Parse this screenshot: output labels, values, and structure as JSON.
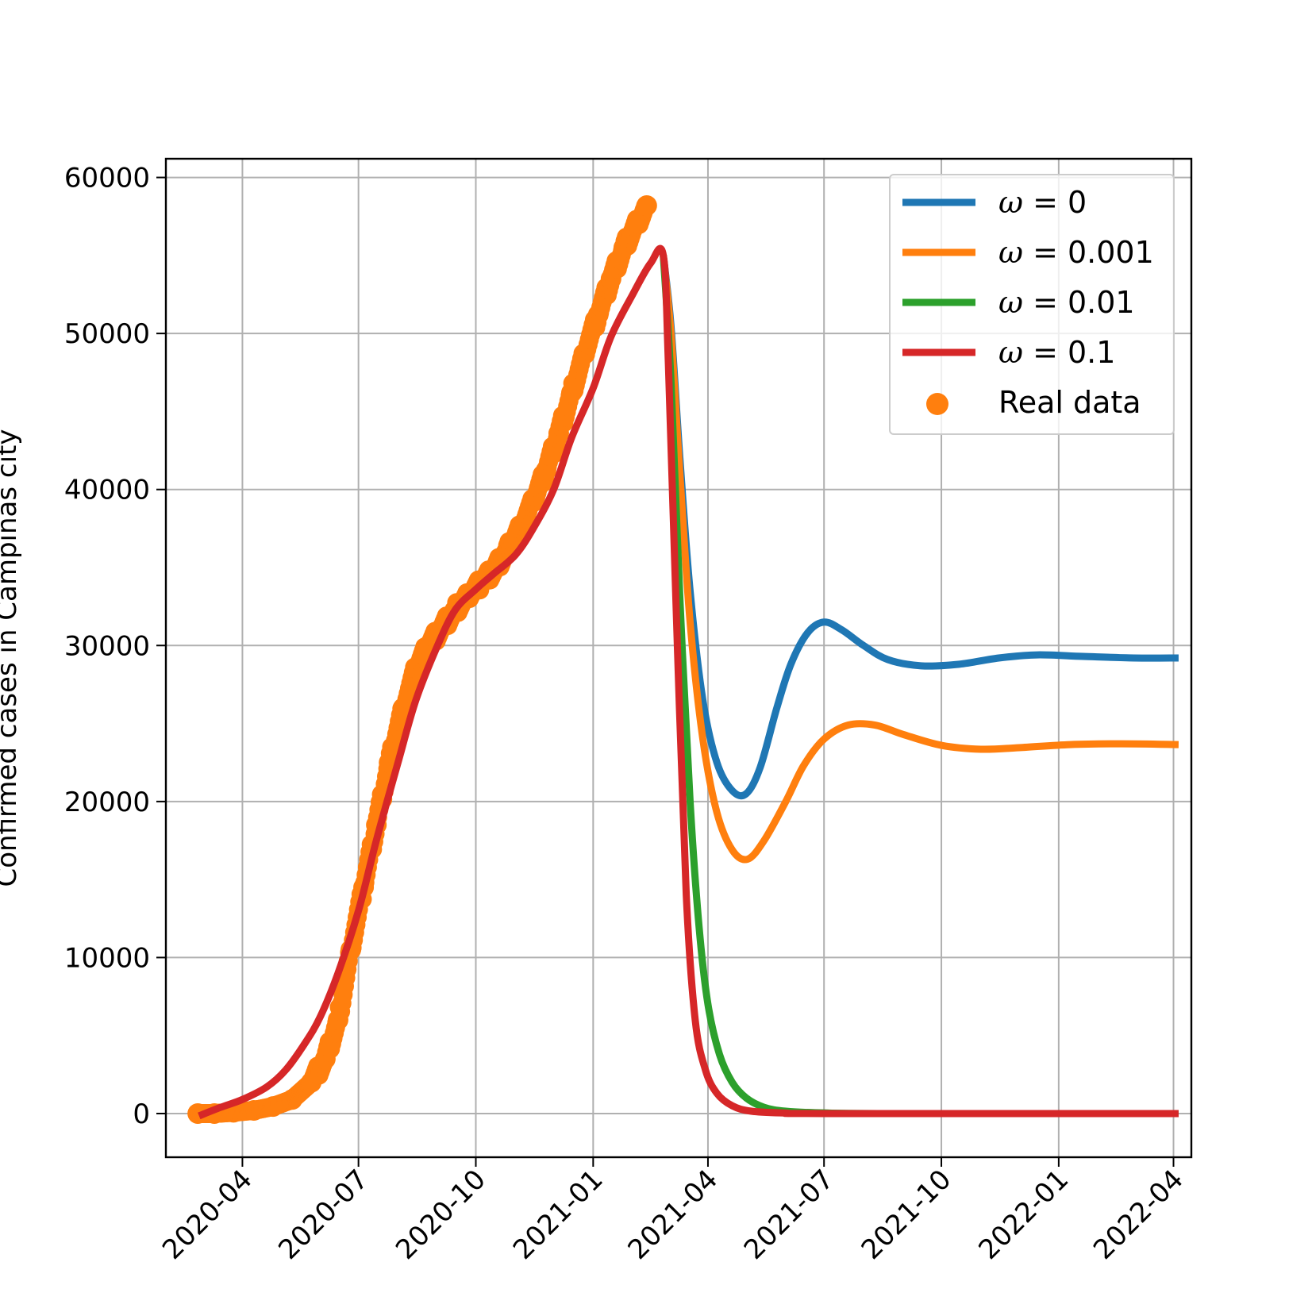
{
  "chart_data": {
    "type": "line",
    "title": "",
    "xlabel": "",
    "ylabel": "Confirmed cases in Campinas city",
    "x_axis_type": "date",
    "xlim": [
      "2020-02-01",
      "2022-04-15"
    ],
    "ylim": [
      -2800,
      61200
    ],
    "xticks": [
      "2020-04",
      "2020-07",
      "2020-10",
      "2021-01",
      "2021-04",
      "2021-07",
      "2021-10",
      "2022-01",
      "2022-04"
    ],
    "xtick_dates": [
      "2020-04-01",
      "2020-07-01",
      "2020-10-01",
      "2021-01-01",
      "2021-04-01",
      "2021-07-01",
      "2021-10-01",
      "2022-01-01",
      "2022-04-01"
    ],
    "yticks": [
      "0",
      "10000",
      "20000",
      "30000",
      "40000",
      "50000",
      "60000"
    ],
    "ytick_values": [
      0,
      10000,
      20000,
      30000,
      40000,
      50000,
      60000
    ],
    "grid": true,
    "legend_position": "top-right",
    "series": [
      {
        "name": "ω = 0",
        "legend_prefix": "ω",
        "legend_value": "0",
        "kind": "line",
        "color": "#1f77b4",
        "points": [
          [
            "2021-02-25",
            55000
          ],
          [
            "2021-03-03",
            50500
          ],
          [
            "2021-03-10",
            42000
          ],
          [
            "2021-03-18",
            33500
          ],
          [
            "2021-03-28",
            26500
          ],
          [
            "2021-04-08",
            22500
          ],
          [
            "2021-04-20",
            20700
          ],
          [
            "2021-05-01",
            20500
          ],
          [
            "2021-05-12",
            22200
          ],
          [
            "2021-05-25",
            26000
          ],
          [
            "2021-06-05",
            28800
          ],
          [
            "2021-06-18",
            30800
          ],
          [
            "2021-07-01",
            31500
          ],
          [
            "2021-07-15",
            31000
          ],
          [
            "2021-08-01",
            30000
          ],
          [
            "2021-08-20",
            29100
          ],
          [
            "2021-09-15",
            28700
          ],
          [
            "2021-10-15",
            28800
          ],
          [
            "2021-11-15",
            29200
          ],
          [
            "2021-12-15",
            29400
          ],
          [
            "2022-01-20",
            29300
          ],
          [
            "2022-03-01",
            29200
          ],
          [
            "2022-04-05",
            29200
          ]
        ]
      },
      {
        "name": "ω = 0.001",
        "legend_prefix": "ω",
        "legend_value": "0.001",
        "kind": "line",
        "color": "#ff7f0e",
        "points": [
          [
            "2021-02-25",
            55000
          ],
          [
            "2021-03-03",
            50000
          ],
          [
            "2021-03-10",
            41000
          ],
          [
            "2021-03-18",
            31500
          ],
          [
            "2021-03-28",
            24000
          ],
          [
            "2021-04-08",
            19300
          ],
          [
            "2021-04-20",
            16900
          ],
          [
            "2021-05-02",
            16300
          ],
          [
            "2021-05-15",
            17500
          ],
          [
            "2021-06-01",
            20000
          ],
          [
            "2021-06-15",
            22300
          ],
          [
            "2021-07-01",
            24000
          ],
          [
            "2021-07-20",
            24900
          ],
          [
            "2021-08-10",
            24900
          ],
          [
            "2021-09-01",
            24300
          ],
          [
            "2021-10-01",
            23600
          ],
          [
            "2021-11-01",
            23350
          ],
          [
            "2021-12-01",
            23450
          ],
          [
            "2022-01-10",
            23650
          ],
          [
            "2022-02-20",
            23700
          ],
          [
            "2022-04-05",
            23650
          ]
        ]
      },
      {
        "name": "ω = 0.01",
        "legend_prefix": "ω",
        "legend_value": "0.01",
        "kind": "line",
        "color": "#2ca02c",
        "points": [
          [
            "2021-02-25",
            55000
          ],
          [
            "2021-03-03",
            47000
          ],
          [
            "2021-03-10",
            33000
          ],
          [
            "2021-03-18",
            20000
          ],
          [
            "2021-03-25",
            12000
          ],
          [
            "2021-04-01",
            7000
          ],
          [
            "2021-04-10",
            3800
          ],
          [
            "2021-04-20",
            2000
          ],
          [
            "2021-05-01",
            1000
          ],
          [
            "2021-05-15",
            400
          ],
          [
            "2021-06-01",
            150
          ],
          [
            "2021-07-01",
            40
          ],
          [
            "2021-09-01",
            0
          ],
          [
            "2022-04-05",
            0
          ]
        ]
      },
      {
        "name": "ω = 0.1",
        "legend_prefix": "ω",
        "legend_value": "0.1",
        "kind": "line",
        "color": "#d62728",
        "points": [
          [
            "2020-02-27",
            -150
          ],
          [
            "2020-03-15",
            400
          ],
          [
            "2020-04-01",
            900
          ],
          [
            "2020-04-20",
            1700
          ],
          [
            "2020-05-05",
            2800
          ],
          [
            "2020-05-20",
            4500
          ],
          [
            "2020-06-01",
            6200
          ],
          [
            "2020-06-15",
            9000
          ],
          [
            "2020-07-01",
            13000
          ],
          [
            "2020-07-15",
            17500
          ],
          [
            "2020-08-01",
            22500
          ],
          [
            "2020-08-15",
            26500
          ],
          [
            "2020-09-01",
            30000
          ],
          [
            "2020-09-15",
            32300
          ],
          [
            "2020-10-01",
            33600
          ],
          [
            "2020-10-15",
            34600
          ],
          [
            "2020-11-01",
            35800
          ],
          [
            "2020-11-15",
            37500
          ],
          [
            "2020-12-01",
            40000
          ],
          [
            "2020-12-15",
            43300
          ],
          [
            "2021-01-01",
            46500
          ],
          [
            "2021-01-15",
            49800
          ],
          [
            "2021-02-01",
            52500
          ],
          [
            "2021-02-15",
            54500
          ],
          [
            "2021-02-25",
            55000
          ],
          [
            "2021-03-01",
            48000
          ],
          [
            "2021-03-08",
            30000
          ],
          [
            "2021-03-15",
            14000
          ],
          [
            "2021-03-22",
            6000
          ],
          [
            "2021-03-30",
            2800
          ],
          [
            "2021-04-08",
            1300
          ],
          [
            "2021-04-20",
            500
          ],
          [
            "2021-05-05",
            150
          ],
          [
            "2021-06-01",
            30
          ],
          [
            "2021-07-01",
            0
          ],
          [
            "2022-04-05",
            0
          ]
        ]
      },
      {
        "name": "Real data",
        "kind": "scatter",
        "color": "#ff7f0e",
        "points": [
          [
            "2020-02-26",
            0
          ],
          [
            "2020-03-10",
            0
          ],
          [
            "2020-03-25",
            80
          ],
          [
            "2020-04-10",
            200
          ],
          [
            "2020-04-25",
            450
          ],
          [
            "2020-05-10",
            900
          ],
          [
            "2020-05-25",
            2000
          ],
          [
            "2020-06-05",
            3500
          ],
          [
            "2020-06-15",
            6000
          ],
          [
            "2020-06-25",
            10500
          ],
          [
            "2020-07-05",
            14500
          ],
          [
            "2020-07-15",
            18500
          ],
          [
            "2020-07-25",
            22500
          ],
          [
            "2020-08-05",
            26000
          ],
          [
            "2020-08-15",
            28500
          ],
          [
            "2020-08-25",
            30000
          ],
          [
            "2020-09-05",
            31200
          ],
          [
            "2020-09-15",
            32300
          ],
          [
            "2020-09-25",
            33200
          ],
          [
            "2020-10-05",
            34000
          ],
          [
            "2020-10-15",
            34800
          ],
          [
            "2020-10-25",
            36000
          ],
          [
            "2020-11-05",
            37600
          ],
          [
            "2020-11-15",
            39200
          ],
          [
            "2020-11-25",
            41200
          ],
          [
            "2020-12-05",
            43600
          ],
          [
            "2020-12-15",
            46200
          ],
          [
            "2020-12-25",
            48700
          ],
          [
            "2021-01-05",
            51200
          ],
          [
            "2021-01-15",
            53500
          ],
          [
            "2021-01-25",
            55500
          ],
          [
            "2021-02-05",
            57200
          ],
          [
            "2021-02-12",
            58200
          ]
        ]
      }
    ]
  }
}
